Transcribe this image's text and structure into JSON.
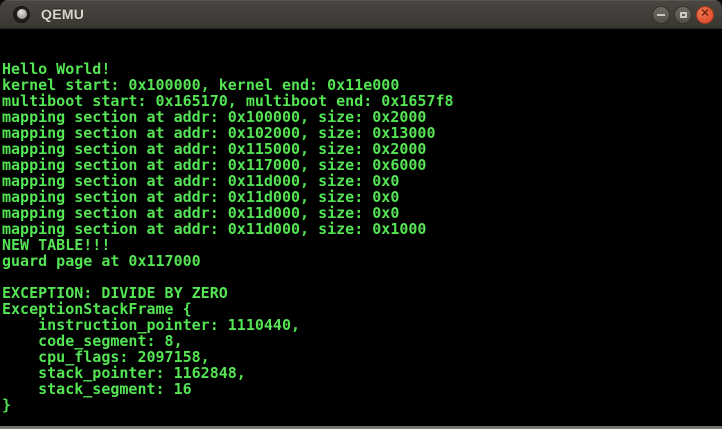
{
  "window": {
    "title": "QEMU",
    "buttons": {
      "minimize_label": "Minimize",
      "maximize_label": "Maximize",
      "close_label": "Close",
      "minimize_glyph": "",
      "close_glyph": "✕"
    },
    "icons": [
      "qemu-app-icon",
      "minimize-icon",
      "maximize-icon",
      "close-icon"
    ],
    "colors": {
      "titlebar_bg": "#3e3b36",
      "titlebar_text": "#d8d4cc",
      "button_gray": "#5f5b53",
      "close_button": "#e25233",
      "terminal_text": "#54e454",
      "terminal_bg": "#000000"
    }
  },
  "terminal": {
    "lines": [
      "",
      "",
      "Hello World!",
      "kernel start: 0x100000, kernel end: 0x11e000",
      "multiboot start: 0x165170, multiboot end: 0x1657f8",
      "mapping section at addr: 0x100000, size: 0x2000",
      "mapping section at addr: 0x102000, size: 0x13000",
      "mapping section at addr: 0x115000, size: 0x2000",
      "mapping section at addr: 0x117000, size: 0x6000",
      "mapping section at addr: 0x11d000, size: 0x0",
      "mapping section at addr: 0x11d000, size: 0x0",
      "mapping section at addr: 0x11d000, size: 0x0",
      "mapping section at addr: 0x11d000, size: 0x1000",
      "NEW TABLE!!!",
      "guard page at 0x117000",
      "",
      "EXCEPTION: DIVIDE BY ZERO",
      "ExceptionStackFrame {",
      "    instruction_pointer: 1110440,",
      "    code_segment: 8,",
      "    cpu_flags: 2097158,",
      "    stack_pointer: 1162848,",
      "    stack_segment: 16",
      "}"
    ]
  }
}
